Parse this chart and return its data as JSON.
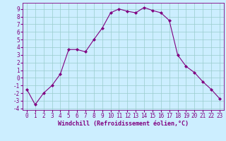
{
  "x": [
    0,
    1,
    2,
    3,
    4,
    5,
    6,
    7,
    8,
    9,
    10,
    11,
    12,
    13,
    14,
    15,
    16,
    17,
    18,
    19,
    20,
    21,
    22,
    23
  ],
  "y": [
    -1.5,
    -3.5,
    -2.0,
    -1.0,
    0.5,
    3.7,
    3.7,
    3.4,
    5.0,
    6.5,
    8.5,
    9.0,
    8.7,
    8.5,
    9.2,
    8.8,
    8.5,
    7.5,
    3.0,
    1.5,
    0.7,
    -0.5,
    -1.5,
    -2.7
  ],
  "xlabel": "Windchill (Refroidissement éolien,°C)",
  "xlim_min": -0.5,
  "xlim_max": 23.5,
  "ylim_min": -4.2,
  "ylim_max": 9.8,
  "yticks": [
    -4,
    -3,
    -2,
    -1,
    0,
    1,
    2,
    3,
    4,
    5,
    6,
    7,
    8,
    9
  ],
  "xticks": [
    0,
    1,
    2,
    3,
    4,
    5,
    6,
    7,
    8,
    9,
    10,
    11,
    12,
    13,
    14,
    15,
    16,
    17,
    18,
    19,
    20,
    21,
    22,
    23
  ],
  "line_color": "#800080",
  "marker": "D",
  "marker_size": 2,
  "bg_color": "#cceeff",
  "grid_color": "#99cccc",
  "tick_fontsize": 5.5,
  "xlabel_fontsize": 6.0
}
